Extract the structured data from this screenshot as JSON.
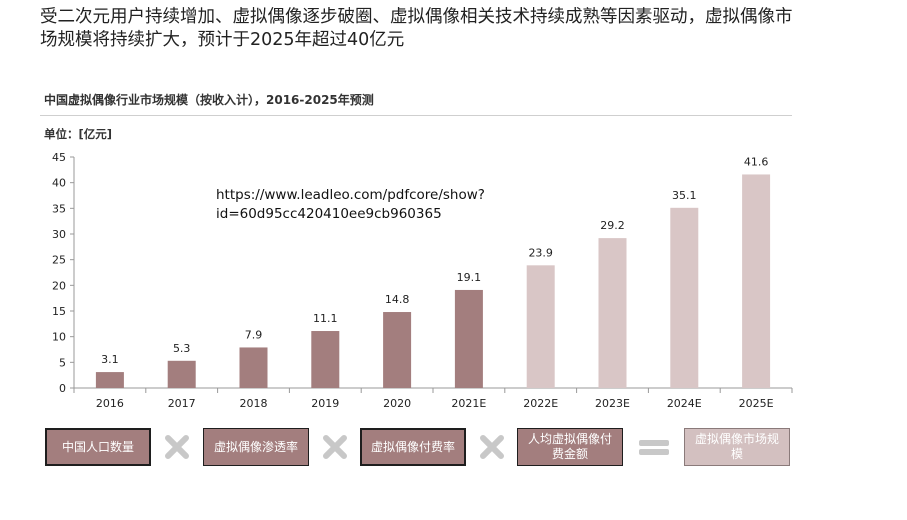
{
  "headline": "受二次元用户持续增加、虚拟偶像逐步破圈、虚拟偶像相关技术持续成熟等因素驱动，虚拟偶像市场规模将持续扩大，预计于2025年超过40亿元",
  "chart_title": "中国虚拟偶像行业市场规模（按收入计），2016-2025年预测",
  "unit_label": "单位：[亿元]",
  "source_url": "https://www.leadleo.com/pdfcore/show?id=60d95cc420410ee9cb960365",
  "colors": {
    "actual": "#a37e7e",
    "forecast": "#d9c6c6"
  },
  "chart_data": {
    "type": "bar",
    "title": "中国虚拟偶像行业市场规模（按收入计），2016-2025年预测",
    "ylabel": "单位：[亿元]",
    "categories": [
      "2016",
      "2017",
      "2018",
      "2019",
      "2020",
      "2021E",
      "2022E",
      "2023E",
      "2024E",
      "2025E"
    ],
    "values": [
      3.1,
      5.3,
      7.9,
      11.1,
      14.8,
      19.1,
      23.9,
      29.2,
      35.1,
      41.6
    ],
    "value_labels": [
      "3.1",
      "5.3",
      "7.9",
      "11.1",
      "14.8",
      "19.1",
      "23.9",
      "29.2",
      "35.1",
      "41.6"
    ],
    "forecast_from_index": 6,
    "ylim": [
      0,
      45
    ],
    "yticks": [
      "0",
      "5",
      "10",
      "15",
      "20",
      "25",
      "30",
      "35",
      "40",
      "45"
    ],
    "grid": false,
    "legend": "none"
  },
  "formula": {
    "items": [
      "中国人口数量",
      "虚拟偶像渗透率",
      "虚拟偶像付费率",
      "人均虚拟偶像付费金额",
      "虚拟偶像市场规模"
    ],
    "operators": [
      "multiply-icon",
      "multiply-icon",
      "multiply-icon",
      "equals-icon"
    ]
  }
}
